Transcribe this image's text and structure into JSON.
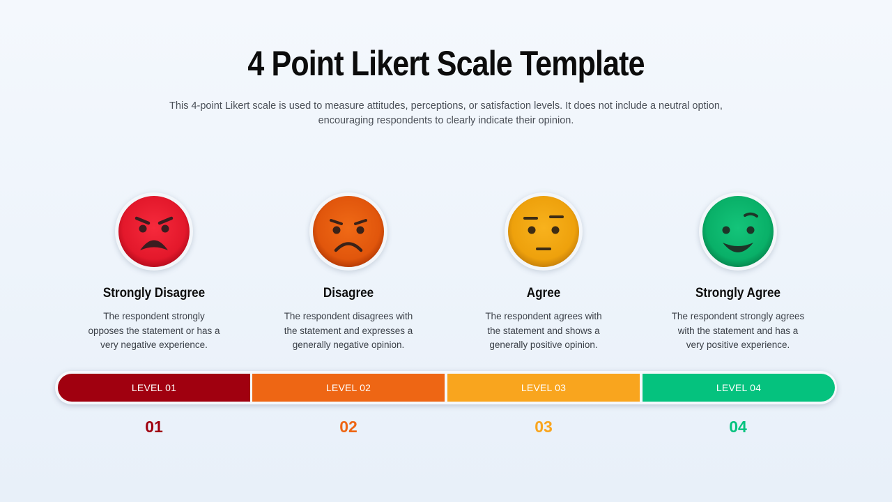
{
  "slide": {
    "title": "4 Point Likert Scale Template",
    "subtitle_line1": "This 4-point Likert scale is used to measure attitudes, perceptions, or satisfaction levels. It does not include a neutral option,",
    "subtitle_line2": "encouraging respondents to clearly indicate their opinion."
  },
  "items": [
    {
      "face_icon": "angry-face-icon",
      "face_color": "#e8192c",
      "label": "Strongly Disagree",
      "desc_line1": "The respondent strongly",
      "desc_line2": "opposes the statement or has a",
      "desc_line3": "very negative experience.",
      "level_label": "LEVEL 01",
      "level_color": "#a0000f",
      "number": "01",
      "number_color": "#a0000f"
    },
    {
      "face_icon": "frowning-face-icon",
      "face_color": "#e8590c",
      "label": "Disagree",
      "desc_line1": "The respondent disagrees with",
      "desc_line2": "the statement and expresses a",
      "desc_line3": "generally negative opinion.",
      "level_label": "LEVEL 02",
      "level_color": "#ee6614",
      "number": "02",
      "number_color": "#ee6614"
    },
    {
      "face_icon": "neutral-face-icon",
      "face_color": "#f0a20c",
      "label": "Agree",
      "desc_line1": "The respondent agrees with",
      "desc_line2": "the statement and shows a",
      "desc_line3": "generally positive opinion.",
      "level_label": "LEVEL 03",
      "level_color": "#f9a51e",
      "number": "03",
      "number_color": "#f9a51e"
    },
    {
      "face_icon": "smiling-face-icon",
      "face_color": "#0bb56c",
      "label": "Strongly Agree",
      "desc_line1": "The respondent strongly agrees",
      "desc_line2": "with the statement and has a",
      "desc_line3": "very positive experience.",
      "level_label": "LEVEL 04",
      "level_color": "#05c27e",
      "number": "04",
      "number_color": "#05c27e"
    }
  ]
}
